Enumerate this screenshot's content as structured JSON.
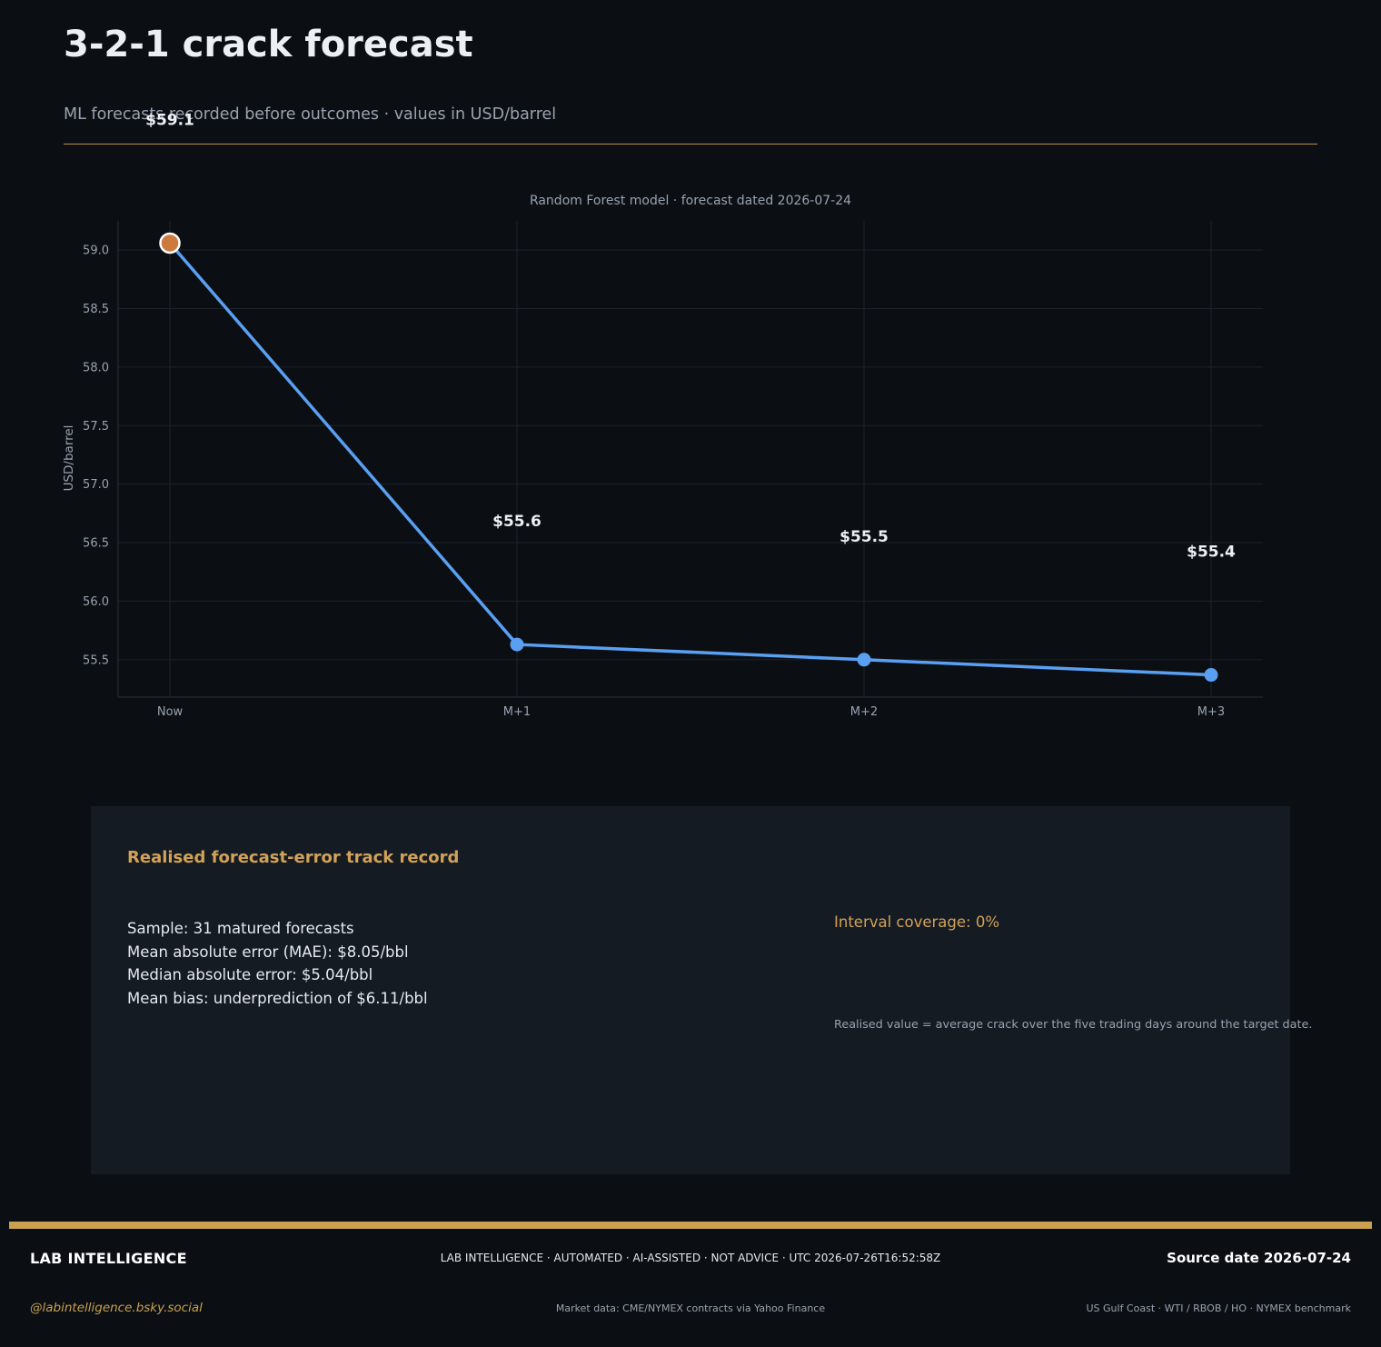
{
  "header": {
    "title": "3-2-1 crack forecast",
    "subtitle": "ML forecasts recorded before outcomes · values in USD/barrel"
  },
  "chart_data": {
    "type": "line",
    "title": "Random Forest model · forecast dated 2026-07-24",
    "xlabel": "",
    "ylabel": "USD/barrel",
    "categories": [
      "Now",
      "M+1",
      "M+2",
      "M+3"
    ],
    "values": [
      59.06,
      55.63,
      55.5,
      55.37
    ],
    "data_labels": [
      "$59.1",
      "$55.6",
      "$55.5",
      "$55.4"
    ],
    "ylim": [
      55.18,
      59.25
    ],
    "yticks": [
      55.5,
      56.0,
      56.5,
      57.0,
      57.5,
      58.0,
      58.5,
      59.0
    ],
    "ytick_labels": [
      "55.5",
      "56.0",
      "56.5",
      "57.0",
      "57.5",
      "58.0",
      "58.5",
      "59.0"
    ],
    "grid": true,
    "colors": {
      "line": "#5aa0f2",
      "current_point": "#cd7a3f",
      "marker_edge": "#ffffff"
    }
  },
  "track_record": {
    "title": "Realised forecast-error track record",
    "stats": [
      "Sample: 31 matured forecasts",
      "Mean absolute error (MAE): $8.05/bbl",
      "Median absolute error: $5.04/bbl",
      "Mean bias: underprediction of $6.11/bbl"
    ],
    "coverage": "Interval coverage: 0%",
    "note": "Realised value = average crack over the five trading days around the target date."
  },
  "footer": {
    "brand": "LAB INTELLIGENCE",
    "disclaimer": "LAB INTELLIGENCE · AUTOMATED · AI-ASSISTED · NOT ADVICE · UTC 2026-07-26T16:52:58Z",
    "source_date": "Source date 2026-07-24",
    "handle": "@labintelligence.bsky.social",
    "market_data": "Market data: CME/NYMEX contracts via Yahoo Finance",
    "benchmark": "US Gulf Coast · WTI / RBOB / HO · NYMEX benchmark"
  }
}
